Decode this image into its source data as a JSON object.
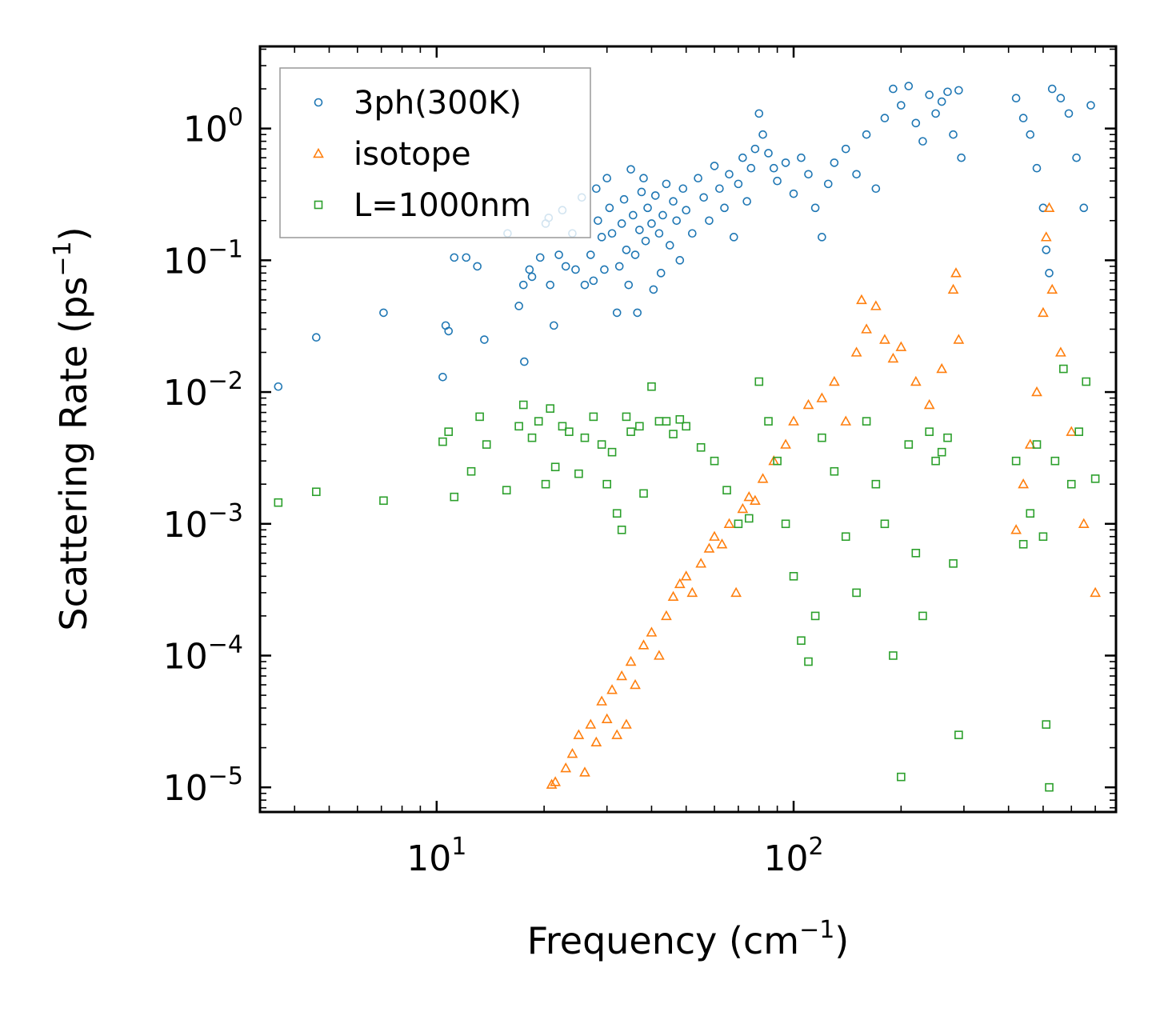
{
  "chart_data": {
    "type": "scatter",
    "xscale": "log",
    "yscale": "log",
    "xlim": [
      3.2,
      800
    ],
    "ylim": [
      6.5e-06,
      4.2
    ],
    "xlabel": "Frequency (cm",
    "xlabel_sup": "−1",
    "xlabel_tail": ")",
    "ylabel": "Scattering Rate (ps",
    "ylabel_sup": "−1",
    "ylabel_tail": ")",
    "x_tick_labels": [
      {
        "value": 10,
        "base": "10",
        "exp": "1"
      },
      {
        "value": 100,
        "base": "10",
        "exp": "2"
      }
    ],
    "y_tick_labels": [
      {
        "value": 1,
        "base": "10",
        "exp": "0"
      },
      {
        "value": 0.1,
        "base": "10",
        "exp": "−1"
      },
      {
        "value": 0.01,
        "base": "10",
        "exp": "−2"
      },
      {
        "value": 0.001,
        "base": "10",
        "exp": "−3"
      },
      {
        "value": 0.0001,
        "base": "10",
        "exp": "−4"
      },
      {
        "value": 1e-05,
        "base": "10",
        "exp": "−5"
      }
    ],
    "legend_position": "upper-left",
    "series": [
      {
        "name": "3ph(300K)",
        "marker": "circle",
        "color": "#1f77b4",
        "points": [
          [
            3.6,
            0.011
          ],
          [
            4.6,
            0.026
          ],
          [
            7.1,
            0.04
          ],
          [
            10.4,
            0.013
          ],
          [
            10.6,
            0.032
          ],
          [
            10.8,
            0.029
          ],
          [
            11.2,
            0.105
          ],
          [
            12.1,
            0.105
          ],
          [
            13.0,
            0.09
          ],
          [
            13.6,
            0.025
          ],
          [
            15.8,
            0.16
          ],
          [
            17.0,
            0.045
          ],
          [
            17.5,
            0.065
          ],
          [
            17.6,
            0.017
          ],
          [
            18.2,
            0.085
          ],
          [
            18.5,
            0.075
          ],
          [
            19.5,
            0.105
          ],
          [
            20.2,
            0.19
          ],
          [
            20.6,
            0.21
          ],
          [
            20.8,
            0.065
          ],
          [
            21.3,
            0.032
          ],
          [
            22.0,
            0.11
          ],
          [
            22.5,
            0.24
          ],
          [
            23.0,
            0.09
          ],
          [
            24.0,
            0.16
          ],
          [
            24.5,
            0.085
          ],
          [
            25.5,
            0.3
          ],
          [
            26.0,
            0.065
          ],
          [
            27.0,
            0.11
          ],
          [
            27.5,
            0.07
          ],
          [
            28.0,
            0.35
          ],
          [
            28.3,
            0.2
          ],
          [
            29.0,
            0.15
          ],
          [
            29.5,
            0.085
          ],
          [
            30.0,
            0.42
          ],
          [
            30.5,
            0.25
          ],
          [
            31.0,
            0.16
          ],
          [
            32.0,
            0.04
          ],
          [
            32.5,
            0.09
          ],
          [
            33.0,
            0.19
          ],
          [
            33.5,
            0.29
          ],
          [
            34.0,
            0.12
          ],
          [
            34.5,
            0.065
          ],
          [
            35.0,
            0.49
          ],
          [
            35.5,
            0.22
          ],
          [
            36.0,
            0.11
          ],
          [
            36.5,
            0.04
          ],
          [
            37.0,
            0.17
          ],
          [
            37.5,
            0.33
          ],
          [
            38.0,
            0.42
          ],
          [
            38.5,
            0.14
          ],
          [
            39.0,
            0.25
          ],
          [
            40.0,
            0.19
          ],
          [
            40.5,
            0.06
          ],
          [
            41.0,
            0.31
          ],
          [
            42.0,
            0.16
          ],
          [
            42.5,
            0.08
          ],
          [
            43.0,
            0.22
          ],
          [
            44.0,
            0.38
          ],
          [
            45.0,
            0.13
          ],
          [
            46.0,
            0.28
          ],
          [
            47.0,
            0.2
          ],
          [
            48.0,
            0.1
          ],
          [
            49.0,
            0.35
          ],
          [
            50.0,
            0.24
          ],
          [
            52.0,
            0.16
          ],
          [
            54.0,
            0.42
          ],
          [
            56.0,
            0.3
          ],
          [
            58.0,
            0.2
          ],
          [
            60.0,
            0.52
          ],
          [
            62.0,
            0.35
          ],
          [
            64.0,
            0.25
          ],
          [
            66.0,
            0.45
          ],
          [
            68.0,
            0.15
          ],
          [
            70.0,
            0.38
          ],
          [
            72.0,
            0.6
          ],
          [
            74.0,
            0.28
          ],
          [
            76.0,
            0.5
          ],
          [
            78.0,
            0.7
          ],
          [
            80.0,
            1.3
          ],
          [
            82.0,
            0.9
          ],
          [
            85.0,
            0.65
          ],
          [
            88.0,
            0.5
          ],
          [
            90.0,
            0.4
          ],
          [
            95.0,
            0.55
          ],
          [
            100.0,
            0.32
          ],
          [
            105.0,
            0.6
          ],
          [
            110.0,
            0.45
          ],
          [
            115.0,
            0.25
          ],
          [
            120.0,
            0.15
          ],
          [
            125.0,
            0.38
          ],
          [
            130.0,
            0.55
          ],
          [
            140.0,
            0.7
          ],
          [
            150.0,
            0.45
          ],
          [
            160.0,
            0.9
          ],
          [
            170.0,
            0.35
          ],
          [
            180.0,
            1.2
          ],
          [
            190.0,
            2.0
          ],
          [
            200.0,
            1.5
          ],
          [
            210.0,
            2.1
          ],
          [
            220.0,
            1.1
          ],
          [
            230.0,
            0.8
          ],
          [
            240.0,
            1.8
          ],
          [
            250.0,
            1.3
          ],
          [
            260.0,
            1.6
          ],
          [
            270.0,
            1.9
          ],
          [
            280.0,
            0.9
          ],
          [
            290.0,
            1.95
          ],
          [
            295.0,
            0.6
          ],
          [
            420.0,
            1.7
          ],
          [
            440.0,
            1.2
          ],
          [
            460.0,
            0.9
          ],
          [
            480.0,
            0.5
          ],
          [
            500.0,
            0.25
          ],
          [
            510.0,
            0.12
          ],
          [
            520.0,
            0.08
          ],
          [
            530.0,
            2.0
          ],
          [
            560.0,
            1.7
          ],
          [
            590.0,
            1.3
          ],
          [
            620.0,
            0.6
          ],
          [
            650.0,
            0.25
          ],
          [
            680.0,
            1.5
          ]
        ]
      },
      {
        "name": "isotope",
        "marker": "triangle",
        "color": "#ff7f0e",
        "points": [
          [
            21.0,
            1.05e-05
          ],
          [
            21.5,
            1.1e-05
          ],
          [
            23.0,
            1.4e-05
          ],
          [
            24.0,
            1.8e-05
          ],
          [
            25.0,
            2.5e-05
          ],
          [
            26.0,
            1.3e-05
          ],
          [
            27.0,
            3e-05
          ],
          [
            28.0,
            2.2e-05
          ],
          [
            29.0,
            4.5e-05
          ],
          [
            30.0,
            3.3e-05
          ],
          [
            31.0,
            5.5e-05
          ],
          [
            32.0,
            2.5e-05
          ],
          [
            33.0,
            7e-05
          ],
          [
            34.0,
            3e-05
          ],
          [
            35.0,
            9e-05
          ],
          [
            36.0,
            6e-05
          ],
          [
            38.0,
            0.00012
          ],
          [
            40.0,
            0.00015
          ],
          [
            42.0,
            0.0001
          ],
          [
            44.0,
            0.0002
          ],
          [
            46.0,
            0.00028
          ],
          [
            48.0,
            0.00035
          ],
          [
            50.0,
            0.0004
          ],
          [
            52.0,
            0.0003
          ],
          [
            55.0,
            0.0005
          ],
          [
            58.0,
            0.00065
          ],
          [
            60.0,
            0.0008
          ],
          [
            63.0,
            0.0007
          ],
          [
            66.0,
            0.001
          ],
          [
            69.0,
            0.0003
          ],
          [
            72.0,
            0.0013
          ],
          [
            75.0,
            0.0016
          ],
          [
            78.0,
            0.0015
          ],
          [
            82.0,
            0.0022
          ],
          [
            88.0,
            0.003
          ],
          [
            95.0,
            0.004
          ],
          [
            100.0,
            0.006
          ],
          [
            110.0,
            0.008
          ],
          [
            120.0,
            0.009
          ],
          [
            130.0,
            0.012
          ],
          [
            140.0,
            0.006
          ],
          [
            150.0,
            0.02
          ],
          [
            155.0,
            0.05
          ],
          [
            160.0,
            0.03
          ],
          [
            170.0,
            0.045
          ],
          [
            180.0,
            0.025
          ],
          [
            190.0,
            0.018
          ],
          [
            200.0,
            0.022
          ],
          [
            220.0,
            0.012
          ],
          [
            240.0,
            0.008
          ],
          [
            260.0,
            0.015
          ],
          [
            280.0,
            0.06
          ],
          [
            285.0,
            0.08
          ],
          [
            290.0,
            0.025
          ],
          [
            420.0,
            0.0009
          ],
          [
            440.0,
            0.002
          ],
          [
            460.0,
            0.004
          ],
          [
            480.0,
            0.01
          ],
          [
            500.0,
            0.04
          ],
          [
            510.0,
            0.15
          ],
          [
            520.0,
            0.25
          ],
          [
            530.0,
            0.06
          ],
          [
            560.0,
            0.02
          ],
          [
            600.0,
            0.005
          ],
          [
            650.0,
            0.001
          ],
          [
            700.0,
            0.0003
          ]
        ]
      },
      {
        "name": "L=1000nm",
        "marker": "square",
        "color": "#2ca02c",
        "points": [
          [
            3.6,
            0.00145
          ],
          [
            4.6,
            0.00175
          ],
          [
            7.1,
            0.0015
          ],
          [
            10.4,
            0.0042
          ],
          [
            10.8,
            0.005
          ],
          [
            11.2,
            0.0016
          ],
          [
            12.5,
            0.0025
          ],
          [
            13.2,
            0.0065
          ],
          [
            13.8,
            0.004
          ],
          [
            15.7,
            0.0018
          ],
          [
            17.0,
            0.0055
          ],
          [
            17.5,
            0.008
          ],
          [
            18.5,
            0.0045
          ],
          [
            19.3,
            0.006
          ],
          [
            20.2,
            0.002
          ],
          [
            20.8,
            0.0075
          ],
          [
            21.5,
            0.0027
          ],
          [
            22.5,
            0.0055
          ],
          [
            23.5,
            0.005
          ],
          [
            25.0,
            0.0024
          ],
          [
            26.0,
            0.0045
          ],
          [
            27.5,
            0.0065
          ],
          [
            29.0,
            0.004
          ],
          [
            30.0,
            0.002
          ],
          [
            31.0,
            0.0035
          ],
          [
            32.0,
            0.0012
          ],
          [
            33.0,
            0.0009
          ],
          [
            34.0,
            0.0065
          ],
          [
            35.0,
            0.005
          ],
          [
            37.0,
            0.0055
          ],
          [
            38.0,
            0.0017
          ],
          [
            40.0,
            0.011
          ],
          [
            42.0,
            0.006
          ],
          [
            44.0,
            0.006
          ],
          [
            46.0,
            0.0048
          ],
          [
            48.0,
            0.0062
          ],
          [
            50.0,
            0.0055
          ],
          [
            55.0,
            0.0038
          ],
          [
            60.0,
            0.003
          ],
          [
            65.0,
            0.0018
          ],
          [
            70.0,
            0.001
          ],
          [
            75.0,
            0.0011
          ],
          [
            80.0,
            0.012
          ],
          [
            85.0,
            0.006
          ],
          [
            90.0,
            0.003
          ],
          [
            95.0,
            0.001
          ],
          [
            100.0,
            0.0004
          ],
          [
            105.0,
            0.00013
          ],
          [
            110.0,
            9e-05
          ],
          [
            115.0,
            0.0002
          ],
          [
            120.0,
            0.0045
          ],
          [
            130.0,
            0.0025
          ],
          [
            140.0,
            0.0008
          ],
          [
            150.0,
            0.0003
          ],
          [
            160.0,
            0.006
          ],
          [
            170.0,
            0.002
          ],
          [
            180.0,
            0.001
          ],
          [
            190.0,
            0.0001
          ],
          [
            200.0,
            1.2e-05
          ],
          [
            210.0,
            0.004
          ],
          [
            220.0,
            0.0006
          ],
          [
            230.0,
            0.0002
          ],
          [
            240.0,
            0.005
          ],
          [
            250.0,
            0.003
          ],
          [
            260.0,
            0.0035
          ],
          [
            270.0,
            0.0045
          ],
          [
            280.0,
            0.0005
          ],
          [
            290.0,
            2.5e-05
          ],
          [
            420.0,
            0.003
          ],
          [
            440.0,
            0.0007
          ],
          [
            460.0,
            0.0012
          ],
          [
            480.0,
            0.004
          ],
          [
            500.0,
            0.0008
          ],
          [
            510.0,
            3e-05
          ],
          [
            520.0,
            1e-05
          ],
          [
            540.0,
            0.003
          ],
          [
            570.0,
            0.015
          ],
          [
            600.0,
            0.002
          ],
          [
            630.0,
            0.005
          ],
          [
            660.0,
            0.012
          ],
          [
            700.0,
            0.0022
          ]
        ]
      }
    ]
  }
}
